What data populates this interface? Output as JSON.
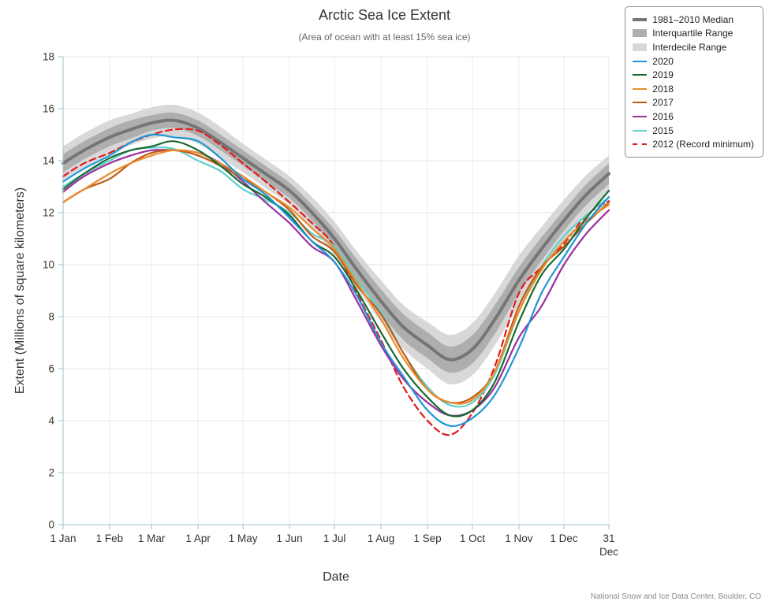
{
  "attribution": {
    "text": "National Snow and Ice Data Center, Boulder, CO"
  },
  "chart_data": {
    "type": "line",
    "title": "Arctic Sea Ice Extent",
    "subtitle": "(Area of ocean with at least 15% sea ice)",
    "xlabel": "Date",
    "ylabel": "Extent (Millions of square kilometers)",
    "ylim": [
      0,
      18
    ],
    "grid": true,
    "legend_position": "top-right",
    "y_ticks": [
      0,
      2,
      4,
      6,
      8,
      10,
      12,
      14,
      16,
      18
    ],
    "x_domain_days": [
      1,
      365
    ],
    "x_ticks": [
      {
        "day": 1,
        "label": "1 Jan"
      },
      {
        "day": 32,
        "label": "1 Feb"
      },
      {
        "day": 60,
        "label": "1 Mar"
      },
      {
        "day": 91,
        "label": "1 Apr"
      },
      {
        "day": 121,
        "label": "1 May"
      },
      {
        "day": 152,
        "label": "1 Jun"
      },
      {
        "day": 182,
        "label": "1 Jul"
      },
      {
        "day": 213,
        "label": "1 Aug"
      },
      {
        "day": 244,
        "label": "1 Sep"
      },
      {
        "day": 274,
        "label": "1 Oct"
      },
      {
        "day": 305,
        "label": "1 Nov"
      },
      {
        "day": 335,
        "label": "1 Dec"
      },
      {
        "day": 365,
        "label": "31\nDec"
      }
    ],
    "anchor_days": [
      1,
      15,
      32,
      46,
      60,
      75,
      91,
      106,
      121,
      136,
      152,
      167,
      182,
      197,
      213,
      228,
      244,
      259,
      274,
      289,
      305,
      320,
      335,
      350,
      365
    ],
    "bands": [
      {
        "name": "Interdecile Range",
        "color": "#d8d8d8",
        "low": [
          13.25,
          13.75,
          14.25,
          14.6,
          14.85,
          14.95,
          14.65,
          14.1,
          13.55,
          12.95,
          12.3,
          11.4,
          10.35,
          9.1,
          7.8,
          6.75,
          6.0,
          5.4,
          5.75,
          6.9,
          8.45,
          9.75,
          10.9,
          11.95,
          12.8
        ],
        "high": [
          14.55,
          15.05,
          15.55,
          15.8,
          16.05,
          16.15,
          15.85,
          15.3,
          14.65,
          14.05,
          13.4,
          12.6,
          11.65,
          10.5,
          9.4,
          8.45,
          7.8,
          7.3,
          7.75,
          8.9,
          10.35,
          11.45,
          12.5,
          13.45,
          14.2
        ]
      },
      {
        "name": "Interquartile Range",
        "color": "#aeaeae",
        "low": [
          13.55,
          14.05,
          14.55,
          14.85,
          15.15,
          15.25,
          14.95,
          14.4,
          13.8,
          13.2,
          12.55,
          11.7,
          10.65,
          9.4,
          8.15,
          7.1,
          6.4,
          5.85,
          6.2,
          7.35,
          8.9,
          10.15,
          11.3,
          12.3,
          13.1
        ],
        "high": [
          14.25,
          14.75,
          15.25,
          15.55,
          15.75,
          15.85,
          15.55,
          15.0,
          14.4,
          13.8,
          13.15,
          12.3,
          11.35,
          10.2,
          9.05,
          8.1,
          7.4,
          6.85,
          7.3,
          8.45,
          9.9,
          11.05,
          12.1,
          13.1,
          13.9
        ]
      }
    ],
    "median": {
      "name": "1981–2010 Median",
      "color": "#757575",
      "width": 4,
      "values": [
        13.9,
        14.4,
        14.9,
        15.2,
        15.45,
        15.55,
        15.25,
        14.7,
        14.1,
        13.5,
        12.85,
        12.0,
        11.0,
        9.8,
        8.6,
        7.6,
        6.9,
        6.35,
        6.75,
        7.9,
        9.4,
        10.6,
        11.7,
        12.7,
        13.5
      ]
    },
    "series": [
      {
        "name": "2020",
        "color": "#1f96d4",
        "values": [
          13.2,
          13.7,
          14.2,
          14.7,
          15.0,
          14.9,
          14.75,
          14.1,
          13.3,
          12.7,
          11.8,
          10.9,
          10.1,
          8.8,
          7.0,
          5.7,
          4.4,
          3.8,
          4.1,
          5.0,
          6.8,
          8.9,
          10.3,
          11.6,
          12.6
        ]
      },
      {
        "name": "2019",
        "color": "#186a34",
        "values": [
          12.9,
          13.5,
          14.1,
          14.4,
          14.55,
          14.75,
          14.4,
          13.8,
          13.1,
          12.6,
          11.9,
          10.9,
          10.3,
          9.0,
          7.4,
          6.0,
          4.9,
          4.2,
          4.4,
          5.5,
          7.8,
          9.6,
          10.6,
          11.8,
          12.85
        ]
      },
      {
        "name": "2018",
        "color": "#ea8c2d",
        "values": [
          12.4,
          12.9,
          13.5,
          13.9,
          14.2,
          14.4,
          14.3,
          13.9,
          13.4,
          12.8,
          12.2,
          11.4,
          10.6,
          9.3,
          7.9,
          6.4,
          5.2,
          4.7,
          4.8,
          5.9,
          8.2,
          9.8,
          10.9,
          11.7,
          12.3
        ]
      },
      {
        "name": "2017",
        "color": "#bf5b17",
        "values": [
          12.4,
          12.9,
          13.3,
          13.9,
          14.3,
          14.4,
          14.2,
          13.8,
          13.3,
          12.8,
          12.1,
          11.1,
          10.5,
          9.2,
          8.1,
          6.6,
          5.2,
          4.7,
          4.9,
          5.9,
          8.4,
          9.9,
          10.7,
          11.6,
          12.4
        ]
      },
      {
        "name": "2016",
        "color": "#9b2fa0",
        "values": [
          12.8,
          13.4,
          13.9,
          14.2,
          14.4,
          14.4,
          14.3,
          13.9,
          13.2,
          12.4,
          11.6,
          10.7,
          10.1,
          8.6,
          6.9,
          5.6,
          4.7,
          4.2,
          4.4,
          5.3,
          7.2,
          8.4,
          10.0,
          11.2,
          12.1
        ]
      },
      {
        "name": "2015",
        "color": "#5fd0cb",
        "values": [
          13.0,
          13.5,
          14.0,
          14.4,
          14.5,
          14.45,
          14.0,
          13.6,
          12.9,
          12.5,
          12.0,
          11.2,
          10.7,
          9.4,
          8.2,
          6.6,
          5.3,
          4.6,
          4.7,
          5.8,
          8.2,
          9.9,
          11.1,
          11.9,
          12.6
        ]
      },
      {
        "name": "2012 (Record minimum)",
        "color": "#e31a1c",
        "dash": "8,5",
        "values": [
          13.4,
          13.9,
          14.3,
          14.7,
          15.0,
          15.2,
          15.15,
          14.6,
          13.9,
          13.2,
          12.4,
          11.6,
          10.7,
          8.9,
          7.1,
          5.3,
          4.0,
          3.45,
          4.3,
          6.1,
          8.9,
          9.9,
          10.8,
          11.9,
          12.45
        ]
      }
    ],
    "legend": [
      {
        "label": "1981–2010 Median",
        "swatch": "line",
        "color": "#757575",
        "thick": 4
      },
      {
        "label": "Interquartile Range",
        "swatch": "band",
        "color": "#aeaeae"
      },
      {
        "label": "Interdecile Range",
        "swatch": "band",
        "color": "#d8d8d8"
      },
      {
        "label": "2020",
        "swatch": "line",
        "color": "#1f96d4"
      },
      {
        "label": "2019",
        "swatch": "line",
        "color": "#186a34"
      },
      {
        "label": "2018",
        "swatch": "line",
        "color": "#ea8c2d"
      },
      {
        "label": "2017",
        "swatch": "line",
        "color": "#bf5b17"
      },
      {
        "label": "2016",
        "swatch": "line",
        "color": "#9b2fa0"
      },
      {
        "label": "2015",
        "swatch": "line",
        "color": "#5fd0cb"
      },
      {
        "label": "2012 (Record minimum)",
        "swatch": "line",
        "color": "#e31a1c",
        "dash": true
      }
    ]
  }
}
